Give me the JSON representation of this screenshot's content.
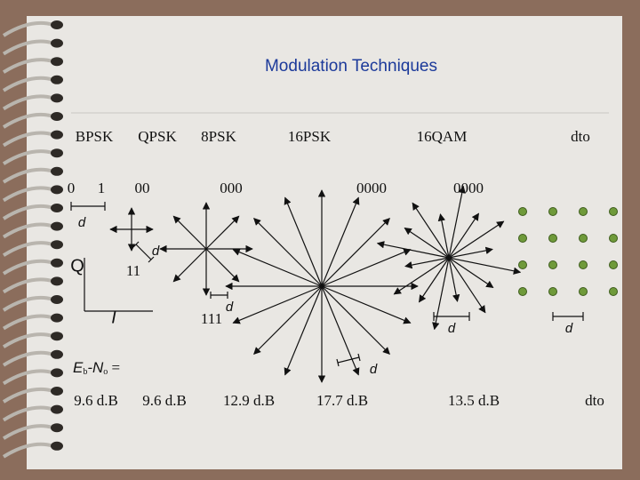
{
  "title": "Modulation Techniques",
  "columns": [
    "BPSK",
    "QPSK",
    "8PSK",
    "16PSK",
    "16QAM",
    "dto"
  ],
  "bit_labels": [
    "0",
    "1",
    "00",
    "000",
    "0000",
    "0000",
    "11",
    "111"
  ],
  "axis_labels": {
    "q": "Q",
    "i": "I"
  },
  "distance_labels": [
    "d",
    "d",
    "d",
    "d",
    "d",
    "d"
  ],
  "ebno": {
    "e": "E",
    "b": "b",
    "dash_n": "-N",
    "o": "o",
    "eq": " ="
  },
  "results": [
    "9.6 d.B",
    "9.6 d.B",
    "12.9 d.B",
    "17.7 d.B",
    "13.5 d.B",
    "dto"
  ]
}
